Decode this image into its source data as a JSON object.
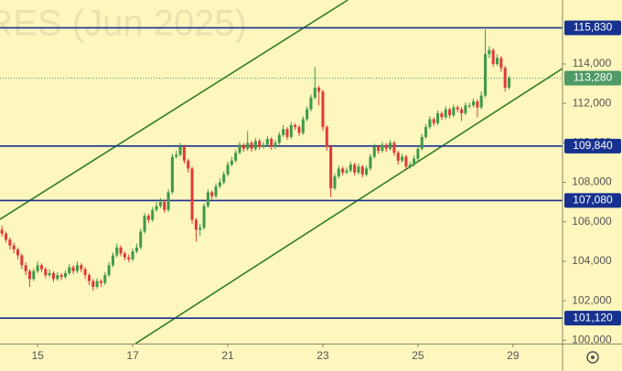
{
  "chart_data": {
    "type": "candlestick",
    "watermark": "RES (Jun 2025)",
    "xlim": [
      -0.5,
      141.5
    ],
    "xticks": [
      {
        "value": 9,
        "label": "15"
      },
      {
        "value": 33,
        "label": "17"
      },
      {
        "value": 57,
        "label": "21"
      },
      {
        "value": 81,
        "label": "23"
      },
      {
        "value": 105,
        "label": "25"
      },
      {
        "value": 129,
        "label": "29"
      }
    ],
    "ylim": [
      99830,
      117240
    ],
    "yticks": [
      {
        "value": 100000,
        "label": "100,000"
      },
      {
        "value": 102000,
        "label": "102,000"
      },
      {
        "value": 104000,
        "label": "104,000"
      },
      {
        "value": 106000,
        "label": "106,000"
      },
      {
        "value": 108000,
        "label": "108,000"
      },
      {
        "value": 110000,
        "label": "110,000"
      },
      {
        "value": 112000,
        "label": "112,000"
      },
      {
        "value": 114000,
        "label": "114,000"
      }
    ],
    "grid": false,
    "up_color": "#3e9a4a",
    "down_color": "#e03a3a",
    "level_color": "#16318f",
    "last_color": "#4f9a66",
    "open": [
      105600,
      105400,
      105100,
      104800,
      104600,
      104300,
      103800,
      103500,
      103100,
      103500,
      103800,
      103600,
      103300,
      103400,
      103100,
      103300,
      103200,
      103400,
      103700,
      103500,
      103800,
      103600,
      103300,
      103000,
      102700,
      103000,
      102900,
      103300,
      103800,
      104300,
      104700,
      104400,
      104200,
      104100,
      104500,
      104700,
      105500,
      106300,
      106100,
      106600,
      106800,
      107000,
      106600,
      107500,
      109300,
      109400,
      109800,
      109100,
      108700,
      106100,
      105600,
      105700,
      106800,
      107500,
      107300,
      107800,
      108000,
      108400,
      108900,
      109100,
      109500,
      109900,
      109700,
      110000,
      109700,
      110100,
      109800,
      109900,
      110200,
      109800,
      110000,
      110400,
      110700,
      110300,
      110900,
      110800,
      110500,
      111200,
      111700,
      112300,
      112800,
      112600,
      110800,
      109800,
      107700,
      108300,
      108700,
      108500,
      108600,
      108900,
      108500,
      108800,
      108400,
      108700,
      109300,
      109800,
      109600,
      109900,
      109700,
      110000,
      109500,
      109100,
      109300,
      108800,
      108900,
      109200,
      109700,
      110300,
      110800,
      111200,
      111000,
      111500,
      111300,
      111700,
      111400,
      111800,
      111700,
      111500,
      111900,
      111900,
      112100,
      111800,
      112400,
      114500,
      114700,
      114000,
      114300,
      113800,
      112800
    ],
    "high": [
      105800,
      105500,
      105200,
      104950,
      104700,
      104400,
      103950,
      103600,
      103650,
      104000,
      103900,
      103700,
      103600,
      103500,
      103450,
      103400,
      103550,
      103850,
      103800,
      104000,
      103900,
      103700,
      103400,
      103100,
      103150,
      103100,
      103450,
      103950,
      104450,
      104900,
      104800,
      104500,
      104350,
      104650,
      104900,
      105650,
      106450,
      106400,
      106750,
      107000,
      107200,
      107100,
      107650,
      109450,
      109600,
      110000,
      109900,
      109200,
      108800,
      106200,
      105900,
      106950,
      107650,
      107600,
      107950,
      108200,
      108550,
      109050,
      109300,
      109650,
      110050,
      110000,
      110600,
      110100,
      110250,
      110200,
      110050,
      110350,
      110300,
      110150,
      110550,
      110900,
      110800,
      111050,
      111000,
      110900,
      111350,
      111850,
      112450,
      113850,
      112900,
      112700,
      110900,
      109900,
      108450,
      108850,
      108800,
      108750,
      109050,
      109000,
      108950,
      108900,
      108850,
      109450,
      109950,
      109900,
      110050,
      110000,
      110150,
      110100,
      109600,
      109450,
      109400,
      109050,
      109350,
      109850,
      110450,
      110950,
      111350,
      111300,
      111650,
      111600,
      111850,
      111800,
      111950,
      111900,
      111800,
      112050,
      112050,
      112250,
      112200,
      112600,
      115750,
      114900,
      114800,
      114500,
      114400,
      113900,
      113400
    ],
    "low": [
      105250,
      104950,
      104600,
      104400,
      104100,
      103600,
      103300,
      102700,
      103000,
      103400,
      103450,
      103150,
      103200,
      102950,
      103000,
      103050,
      103100,
      103300,
      103350,
      103400,
      103450,
      103100,
      102800,
      102500,
      102600,
      102700,
      102800,
      103200,
      103700,
      104200,
      104250,
      104050,
      103950,
      104000,
      104400,
      104600,
      105400,
      105950,
      106000,
      106500,
      106700,
      106450,
      106500,
      107400,
      109200,
      109300,
      108950,
      108500,
      105900,
      105000,
      105300,
      105600,
      106700,
      107150,
      107200,
      107700,
      107900,
      108300,
      108800,
      109000,
      109400,
      109550,
      109600,
      109550,
      109600,
      109650,
      109700,
      109800,
      109650,
      109700,
      109900,
      110300,
      110150,
      110200,
      110650,
      110350,
      110400,
      111100,
      111600,
      112200,
      111900,
      110600,
      109600,
      107250,
      107600,
      108200,
      108350,
      108400,
      108500,
      108350,
      108400,
      108250,
      108300,
      108600,
      109200,
      109450,
      109500,
      109550,
      109600,
      109350,
      108900,
      109000,
      108600,
      108700,
      108800,
      109100,
      109600,
      110200,
      110700,
      110850,
      110900,
      111150,
      111200,
      111250,
      111300,
      111550,
      111100,
      111400,
      111750,
      111800,
      111300,
      111700,
      112300,
      114300,
      113850,
      113900,
      113600,
      112600,
      112700
    ],
    "close": [
      105400,
      105100,
      104800,
      104600,
      104300,
      103800,
      103500,
      103100,
      103500,
      103800,
      103600,
      103300,
      103400,
      103100,
      103300,
      103200,
      103400,
      103700,
      103500,
      103800,
      103600,
      103300,
      103000,
      102700,
      103000,
      102900,
      103300,
      103800,
      104300,
      104700,
      104400,
      104200,
      104100,
      104500,
      104700,
      105500,
      106300,
      106100,
      106600,
      106800,
      107000,
      106600,
      107500,
      109300,
      109400,
      109800,
      109100,
      108700,
      106100,
      105600,
      105700,
      106800,
      107500,
      107300,
      107800,
      108000,
      108400,
      108900,
      109100,
      109500,
      109900,
      109700,
      110000,
      109700,
      110100,
      109800,
      109900,
      110200,
      109800,
      110000,
      110400,
      110700,
      110300,
      110900,
      110800,
      110500,
      111200,
      111700,
      112300,
      112800,
      112600,
      110800,
      109800,
      107700,
      108300,
      108700,
      108500,
      108600,
      108900,
      108500,
      108800,
      108400,
      108700,
      109300,
      109800,
      109600,
      109900,
      109700,
      110000,
      109500,
      109100,
      109300,
      108800,
      108900,
      109200,
      109700,
      110300,
      110800,
      111200,
      111000,
      111500,
      111300,
      111700,
      111400,
      111800,
      111700,
      111500,
      111900,
      111900,
      112100,
      111800,
      112400,
      114500,
      114700,
      114000,
      114300,
      113800,
      112800,
      113280
    ],
    "levels": [
      {
        "value": 115830,
        "label": "115,830"
      },
      {
        "value": 109840,
        "label": "109,840"
      },
      {
        "value": 107080,
        "label": "107,080"
      },
      {
        "value": 101120,
        "label": "101,120"
      }
    ],
    "last_price": {
      "value": 113280,
      "label": "113,280"
    },
    "trend_lines": [
      {
        "x": [
          -0.5,
          87.3
        ],
        "y": [
          106130,
          117240
        ],
        "color": "#2f7d1f"
      },
      {
        "x": [
          33.7,
          141.5
        ],
        "y": [
          99830,
          113770
        ],
        "color": "#2f7d1f"
      }
    ]
  }
}
